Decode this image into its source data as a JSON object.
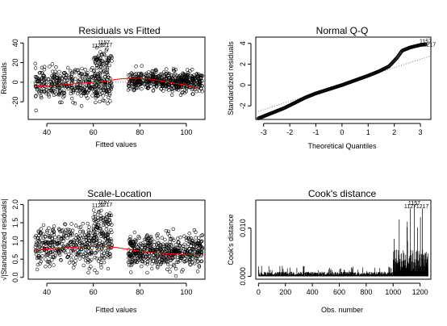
{
  "figure": {
    "panels": 4,
    "layout": "2x2"
  },
  "chart_data": [
    {
      "type": "scatter",
      "title": "Residuals vs Fitted",
      "xlabel": "Fitted values",
      "ylabel": "Residuals",
      "xlim": [
        32,
        108
      ],
      "ylim": [
        -38,
        46
      ],
      "x_ticks": [
        40,
        60,
        80,
        100
      ],
      "y_ticks": [
        -20,
        0,
        20,
        40
      ],
      "point_style": "open-circle",
      "smoother": {
        "color": "#ff0000",
        "x": [
          35,
          40,
          45,
          50,
          55,
          60,
          65,
          70,
          75,
          80,
          85,
          90,
          95,
          100,
          105
        ],
        "y": [
          -4,
          -3.5,
          -3,
          -2,
          -1,
          0,
          1,
          3,
          4,
          4,
          3,
          1,
          -1,
          -3,
          -6
        ]
      },
      "reference_line": {
        "y": 0,
        "style": "dotted",
        "color": "#808080"
      },
      "clusters": [
        {
          "x_range": [
            35,
            68
          ],
          "y_center": -2,
          "y_spread": 14,
          "n": 420
        },
        {
          "x_range": [
            60,
            68
          ],
          "y_center": 22,
          "y_spread": 10,
          "n": 60
        },
        {
          "x_range": [
            75,
            107
          ],
          "y_center": 1,
          "y_spread": 9,
          "n": 520
        }
      ],
      "labeled_points": [
        {
          "label": "1157",
          "x": 64.5,
          "y": 38.5
        },
        {
          "label": "1127",
          "x": 62,
          "y": 35.5
        },
        {
          "label": "1217",
          "x": 65.5,
          "y": 36
        }
      ]
    },
    {
      "type": "scatter",
      "title": "Normal Q-Q",
      "xlabel": "Theoretical Quantiles",
      "ylabel": "Standardized residuals",
      "xlim": [
        -3.3,
        3.4
      ],
      "ylim": [
        -3.3,
        4.6
      ],
      "x_ticks": [
        -3,
        -2,
        -1,
        0,
        1,
        2,
        3
      ],
      "y_ticks": [
        -2,
        0,
        2,
        4
      ],
      "point_style": "open-circle",
      "qq_curve": {
        "x": [
          -3.2,
          -3.0,
          -2.6,
          -2.2,
          -1.8,
          -1.4,
          -1.0,
          -0.5,
          0,
          0.5,
          1.0,
          1.4,
          1.8,
          2.1,
          2.3,
          2.6,
          3.0,
          3.2
        ],
        "y": [
          -3.2,
          -3.0,
          -2.6,
          -2.2,
          -1.7,
          -1.2,
          -0.8,
          -0.4,
          0,
          0.45,
          0.9,
          1.3,
          1.8,
          2.6,
          3.3,
          3.6,
          3.85,
          3.9
        ]
      },
      "reference_line": {
        "x": [
          -3.3,
          3.4
        ],
        "y": [
          -2.6,
          2.8
        ],
        "style": "dotted",
        "color": "#808080"
      },
      "labeled_points": [
        {
          "label": "1157",
          "x": 3.2,
          "y": 4.0
        },
        {
          "label": "1217",
          "x": 3.35,
          "y": 3.7
        }
      ]
    },
    {
      "type": "scatter",
      "title": "Scale-Location",
      "xlabel": "Fitted values",
      "ylabel": "√|Standardized residuals|",
      "xlim": [
        32,
        108
      ],
      "ylim": [
        -0.05,
        2.12
      ],
      "x_ticks": [
        40,
        60,
        80,
        100
      ],
      "y_ticks": [
        0.0,
        0.5,
        1.0,
        1.5,
        2.0
      ],
      "y_tick_labels": [
        "0.0",
        "0.5",
        "1.0",
        "1.5",
        "2.0"
      ],
      "point_style": "open-circle",
      "smoother": {
        "color": "#ff0000",
        "x": [
          35,
          40,
          45,
          50,
          55,
          60,
          65,
          70,
          75,
          80,
          85,
          90,
          95,
          100,
          105
        ],
        "y": [
          0.75,
          0.78,
          0.8,
          0.82,
          0.84,
          0.85,
          0.85,
          0.82,
          0.77,
          0.72,
          0.68,
          0.66,
          0.64,
          0.63,
          0.62
        ]
      },
      "clusters": [
        {
          "x_range": [
            35,
            68
          ],
          "y_center": 0.85,
          "y_spread": 0.5,
          "n": 420
        },
        {
          "x_range": [
            60,
            68
          ],
          "y_center": 1.55,
          "y_spread": 0.3,
          "n": 60
        },
        {
          "x_range": [
            75,
            107
          ],
          "y_center": 0.7,
          "y_spread": 0.42,
          "n": 520
        }
      ],
      "labeled_points": [
        {
          "label": "1157",
          "x": 64.5,
          "y": 2.02
        },
        {
          "label": "1127",
          "x": 62,
          "y": 1.92
        },
        {
          "label": "1217",
          "x": 65.5,
          "y": 1.94
        }
      ]
    },
    {
      "type": "bar",
      "title": "Cook's distance",
      "xlabel": "Obs. number",
      "ylabel": "Cook's distance",
      "xlim": [
        -20,
        1280
      ],
      "ylim": [
        -0.0006,
        0.0158
      ],
      "x_ticks": [
        0,
        200,
        400,
        600,
        800,
        1000,
        1200
      ],
      "y_ticks": [
        0.0,
        0.01
      ],
      "y_tick_labels": [
        "0.000",
        "0.010"
      ],
      "n_obs": 1260,
      "segments": [
        {
          "x_range": [
            0,
            1000
          ],
          "typical": 0.0006,
          "max": 0.0022
        },
        {
          "x_range": [
            1000,
            1260
          ],
          "typical": 0.0035,
          "max": 0.0135
        }
      ],
      "labeled_points": [
        {
          "label": "1157",
          "x": 1157,
          "y": 0.0148
        },
        {
          "label": "1127",
          "x": 1127,
          "y": 0.0141
        },
        {
          "label": "1217",
          "x": 1217,
          "y": 0.0141
        }
      ]
    }
  ]
}
